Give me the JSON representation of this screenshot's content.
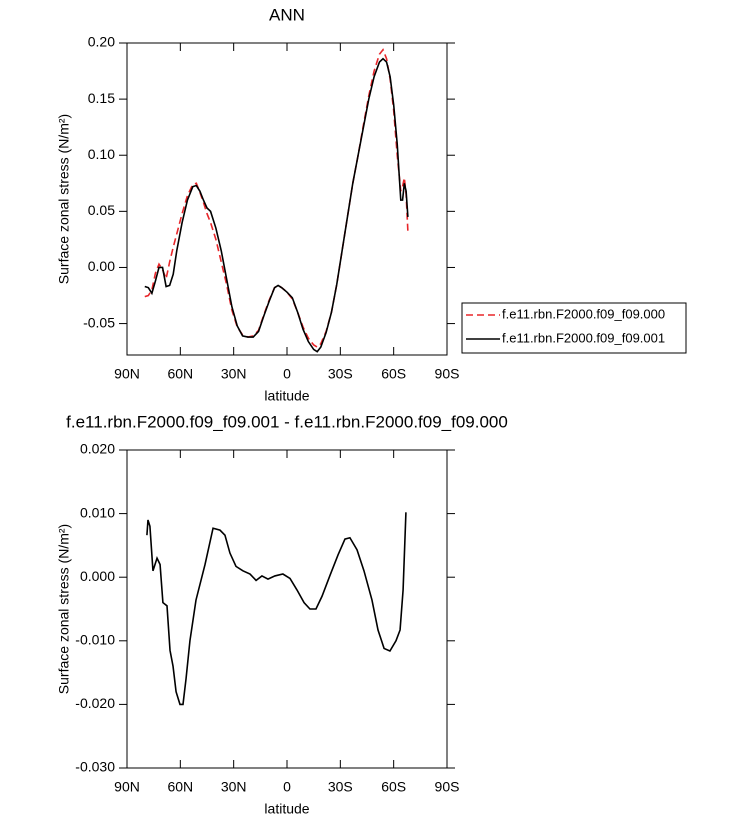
{
  "chart_data": [
    {
      "type": "line",
      "title": "ANN",
      "xlabel": "latitude",
      "ylabel": "Surface zonal stress (N/m²)",
      "xlim": [
        90,
        -90
      ],
      "xticks": [
        {
          "value": 90,
          "label": "90N"
        },
        {
          "value": 60,
          "label": "60N"
        },
        {
          "value": 30,
          "label": "30N"
        },
        0,
        {
          "value": -30,
          "label": "30S"
        },
        {
          "value": -60,
          "label": "60S"
        },
        {
          "value": -90,
          "label": "90S"
        }
      ],
      "ylim": [
        -0.078,
        0.2
      ],
      "yticks": [
        {
          "value": -0.05,
          "label": "-0.05"
        },
        {
          "value": 0,
          "label": "0.00"
        },
        {
          "value": 0.05,
          "label": "0.05"
        },
        {
          "value": 0.1,
          "label": "0.10"
        },
        {
          "value": 0.15,
          "label": "0.15"
        },
        {
          "value": 0.2,
          "label": "0.20"
        }
      ],
      "legend": "right",
      "x": [
        80,
        78,
        76,
        74,
        72,
        70,
        68,
        66,
        64,
        62,
        59,
        56,
        53,
        51,
        49,
        47,
        45,
        43,
        40,
        37,
        34,
        31,
        28,
        25,
        22,
        19,
        16,
        13,
        10,
        7,
        5,
        3,
        0,
        -3,
        -6,
        -9,
        -12,
        -15,
        -17,
        -19,
        -22,
        -25,
        -28,
        -31,
        -34,
        -37,
        -40,
        -43,
        -46,
        -49,
        -52,
        -54,
        -56,
        -58,
        -60,
        -62,
        -64,
        -65,
        -66,
        -67,
        -68
      ],
      "series": [
        {
          "name": "f.e11.rbn.F2000.f09_f09.000",
          "color": "#e8262a",
          "linestyle": "dashed",
          "values": [
            -0.026,
            -0.025,
            -0.02,
            -0.005,
            0.003,
            -0.002,
            -0.01,
            0.005,
            0.018,
            0.03,
            0.048,
            0.064,
            0.074,
            0.075,
            0.067,
            0.058,
            0.048,
            0.04,
            0.025,
            0.005,
            -0.015,
            -0.038,
            -0.053,
            -0.06,
            -0.062,
            -0.061,
            -0.056,
            -0.042,
            -0.029,
            -0.018,
            -0.016,
            -0.018,
            -0.022,
            -0.028,
            -0.04,
            -0.053,
            -0.063,
            -0.069,
            -0.071,
            -0.068,
            -0.057,
            -0.04,
            -0.015,
            0.015,
            0.045,
            0.075,
            0.1,
            0.127,
            0.153,
            0.175,
            0.19,
            0.194,
            0.186,
            0.168,
            0.14,
            0.1,
            0.068,
            0.072,
            0.08,
            0.065,
            0.032
          ]
        },
        {
          "name": "f.e11.rbn.F2000.f09_f09.001",
          "color": "#000000",
          "linestyle": "solid",
          "values": [
            -0.017,
            -0.018,
            -0.023,
            -0.012,
            0.0,
            0.0,
            -0.017,
            -0.016,
            -0.006,
            0.015,
            0.04,
            0.06,
            0.072,
            0.073,
            0.068,
            0.06,
            0.053,
            0.05,
            0.035,
            0.015,
            -0.01,
            -0.035,
            -0.052,
            -0.061,
            -0.062,
            -0.062,
            -0.057,
            -0.043,
            -0.03,
            -0.018,
            -0.016,
            -0.018,
            -0.022,
            -0.027,
            -0.04,
            -0.055,
            -0.066,
            -0.073,
            -0.075,
            -0.071,
            -0.058,
            -0.04,
            -0.015,
            0.015,
            0.045,
            0.075,
            0.1,
            0.125,
            0.15,
            0.17,
            0.183,
            0.186,
            0.183,
            0.17,
            0.145,
            0.11,
            0.06,
            0.06,
            0.075,
            0.068,
            0.045
          ]
        }
      ]
    },
    {
      "type": "line",
      "title": "f.e11.rbn.F2000.f09_f09.001 - f.e11.rbn.F2000.f09_f09.000",
      "xlabel": "latitude",
      "ylabel": "Surface zonal stress (N/m²)",
      "xlim": [
        90,
        -90
      ],
      "xticks": [
        {
          "value": 90,
          "label": "90N"
        },
        {
          "value": 60,
          "label": "60N"
        },
        {
          "value": 30,
          "label": "30N"
        },
        0,
        {
          "value": -30,
          "label": "30S"
        },
        {
          "value": -60,
          "label": "60S"
        },
        {
          "value": -90,
          "label": "90S"
        }
      ],
      "ylim": [
        -0.03,
        0.02
      ],
      "yticks": [
        {
          "value": -0.03,
          "label": "-0.030"
        },
        {
          "value": -0.02,
          "label": "-0.020"
        },
        {
          "value": -0.01,
          "label": "-0.010"
        },
        {
          "value": 0,
          "label": "0.000"
        },
        {
          "value": 0.01,
          "label": "0.010"
        },
        {
          "value": 0.02,
          "label": "0.020"
        }
      ],
      "x": [
        78.8,
        78.2,
        77.1,
        75.4,
        73.1,
        71.4,
        69.8,
        67.5,
        65.8,
        64.1,
        62.4,
        60.2,
        58.5,
        56.8,
        54.6,
        51.2,
        46.1,
        41.6,
        37.7,
        34.9,
        32.1,
        28.7,
        24.8,
        20.8,
        17.4,
        14.1,
        10.7,
        6.8,
        2.3,
        -1.7,
        -5.6,
        -9.6,
        -12.9,
        -16.3,
        -19.7,
        -24.2,
        -28.7,
        -32.6,
        -35.4,
        -39.4,
        -43.3,
        -47.8,
        -51.2,
        -54.6,
        -57.9,
        -61.3,
        -63.6,
        -65.3,
        -66.9
      ],
      "series": [
        {
          "color": "#000000",
          "linestyle": "solid",
          "values": [
            0.0066,
            0.009,
            0.008,
            0.001,
            0.003,
            0.002,
            -0.004,
            -0.0045,
            -0.0115,
            -0.014,
            -0.018,
            -0.02,
            -0.02,
            -0.016,
            -0.01,
            -0.0036,
            0.002,
            0.0077,
            0.0074,
            0.0066,
            0.0038,
            0.0017,
            0.001,
            0.0005,
            -0.0005,
            0.0002,
            -0.0003,
            0.0002,
            0.0005,
            -0.0002,
            -0.002,
            -0.004,
            -0.005,
            -0.005,
            -0.003,
            0.0003,
            0.0035,
            0.006,
            0.0062,
            0.0043,
            0.001,
            -0.0036,
            -0.0083,
            -0.0112,
            -0.0116,
            -0.01,
            -0.0083,
            -0.002,
            0.0102
          ]
        }
      ]
    }
  ]
}
